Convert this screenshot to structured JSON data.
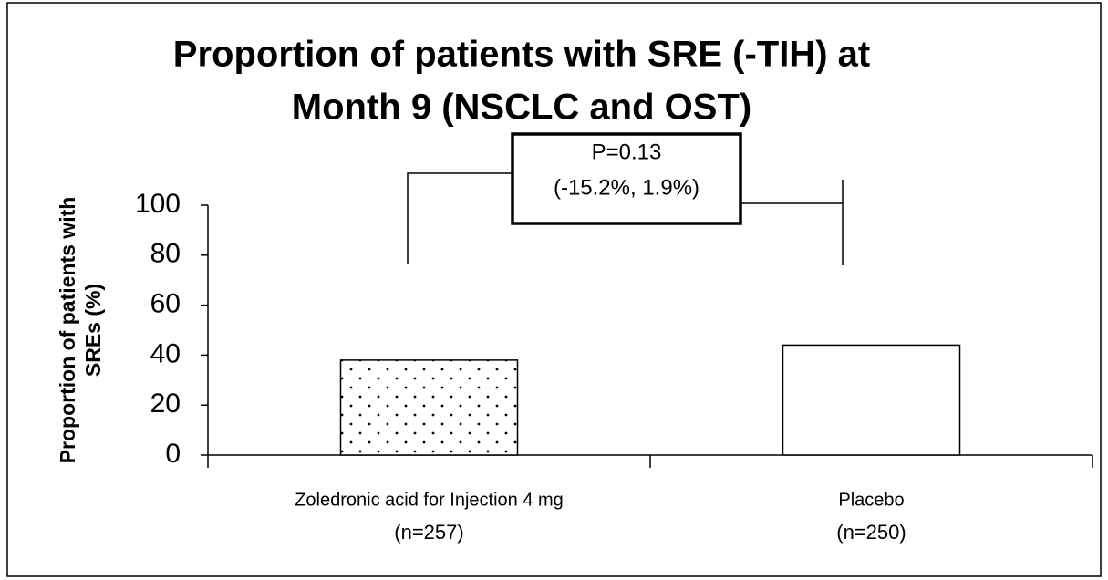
{
  "chart_data": {
    "type": "bar",
    "title": [
      "Proportion of patients with SRE (-TIH) at",
      "Month 9 (NSCLC and OST)"
    ],
    "y_label": [
      "Proportion of patients with",
      "SREs (%)"
    ],
    "categories": [
      "Zoledronic acid for Injection 4 mg",
      "Placebo"
    ],
    "category_sublabels": [
      "(n=257)",
      "(n=250)"
    ],
    "values": [
      38,
      44
    ],
    "bar_patterns": [
      "dots",
      "solid"
    ],
    "color": "#000000",
    "ylim": [
      0,
      100
    ],
    "yticks": [
      0,
      20,
      40,
      60,
      80,
      100
    ],
    "annotation": [
      "P=0.13",
      "(-15.2%, 1.9%)"
    ]
  }
}
